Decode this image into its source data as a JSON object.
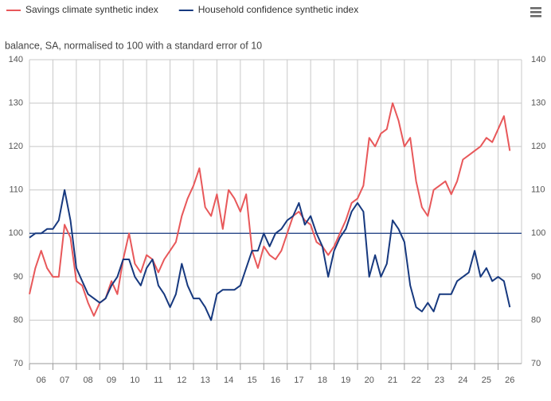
{
  "chart_data": {
    "type": "line",
    "subtitle": "balance, SA, normalised to 100 with a standard error of 10",
    "x": [
      2006,
      2006.25,
      2006.5,
      2006.75,
      2007,
      2007.25,
      2007.5,
      2007.75,
      2008,
      2008.25,
      2008.5,
      2008.75,
      2009,
      2009.25,
      2009.5,
      2009.75,
      2010,
      2010.25,
      2010.5,
      2010.75,
      2011,
      2011.25,
      2011.5,
      2011.75,
      2012,
      2012.25,
      2012.5,
      2012.75,
      2013,
      2013.25,
      2013.5,
      2013.75,
      2014,
      2014.25,
      2014.5,
      2014.75,
      2015,
      2015.25,
      2015.5,
      2015.75,
      2016,
      2016.25,
      2016.5,
      2016.75,
      2017,
      2017.25,
      2017.5,
      2017.75,
      2018,
      2018.25,
      2018.5,
      2018.75,
      2019,
      2019.25,
      2019.5,
      2019.75,
      2020,
      2020.25,
      2020.5,
      2020.75,
      2021,
      2021.25,
      2021.5,
      2021.75,
      2022,
      2022.25,
      2022.5,
      2022.75,
      2023,
      2023.25,
      2023.5,
      2023.75,
      2024,
      2024.25,
      2024.5,
      2024.75,
      2025,
      2025.25,
      2025.5,
      2025.75,
      2026,
      2026.25,
      2026.5
    ],
    "series": [
      {
        "name": "Savings climate synthetic index",
        "color": "#e8585a",
        "values": [
          86,
          92,
          96,
          92,
          90,
          90,
          102,
          99,
          89,
          88,
          84,
          81,
          84,
          85,
          89,
          86,
          94,
          100,
          93,
          91,
          95,
          94,
          91,
          94,
          96,
          98,
          104,
          108,
          111,
          115,
          106,
          104,
          109,
          101,
          110,
          108,
          105,
          109,
          96,
          92,
          97,
          95,
          94,
          96,
          100,
          104,
          105,
          103,
          102,
          98,
          97,
          95,
          97,
          100,
          103,
          107,
          108,
          111,
          122,
          120,
          123,
          124,
          130,
          126,
          120,
          122,
          112,
          106,
          104,
          110,
          111,
          112,
          109,
          112,
          117,
          118,
          119,
          120,
          122,
          121,
          124,
          127,
          119
        ]
      },
      {
        "name": "Household confidence synthetic index",
        "color": "#17397f",
        "values": [
          99,
          100,
          100,
          101,
          101,
          103,
          110,
          103,
          92,
          89,
          86,
          85,
          84,
          85,
          88,
          90,
          94,
          94,
          90,
          88,
          92,
          94,
          88,
          86,
          83,
          86,
          93,
          88,
          85,
          85,
          83,
          80,
          86,
          87,
          87,
          87,
          88,
          92,
          96,
          96,
          100,
          97,
          100,
          101,
          103,
          104,
          107,
          102,
          104,
          100,
          97,
          90,
          96,
          99,
          101,
          105,
          107,
          105,
          90,
          95,
          90,
          93,
          103,
          101,
          98,
          88,
          83,
          82,
          84,
          82,
          86,
          86,
          86,
          89,
          90,
          91,
          96,
          90,
          92,
          89,
          90,
          89,
          83
        ]
      }
    ],
    "xlim": [
      2006,
      2027
    ],
    "xticks": [
      {
        "value": 2006,
        "label": "06"
      },
      {
        "value": 2007,
        "label": "07"
      },
      {
        "value": 2008,
        "label": "08"
      },
      {
        "value": 2009,
        "label": "09"
      },
      {
        "value": 2010,
        "label": "10"
      },
      {
        "value": 2011,
        "label": "11"
      },
      {
        "value": 2012,
        "label": "12"
      },
      {
        "value": 2013,
        "label": "13"
      },
      {
        "value": 2014,
        "label": "14"
      },
      {
        "value": 2015,
        "label": "15"
      },
      {
        "value": 2016,
        "label": "16"
      },
      {
        "value": 2017,
        "label": "17"
      },
      {
        "value": 2018,
        "label": "18"
      },
      {
        "value": 2019,
        "label": "19"
      },
      {
        "value": 2020,
        "label": "20"
      },
      {
        "value": 2021,
        "label": "21"
      },
      {
        "value": 2022,
        "label": "22"
      },
      {
        "value": 2023,
        "label": "23"
      },
      {
        "value": 2024,
        "label": "24"
      },
      {
        "value": 2025,
        "label": "25"
      },
      {
        "value": 2026,
        "label": "26"
      }
    ],
    "ylim": [
      70,
      140
    ],
    "yticks": [
      70,
      80,
      90,
      100,
      110,
      120,
      130,
      140
    ],
    "reference_line": 100,
    "grid": true
  }
}
